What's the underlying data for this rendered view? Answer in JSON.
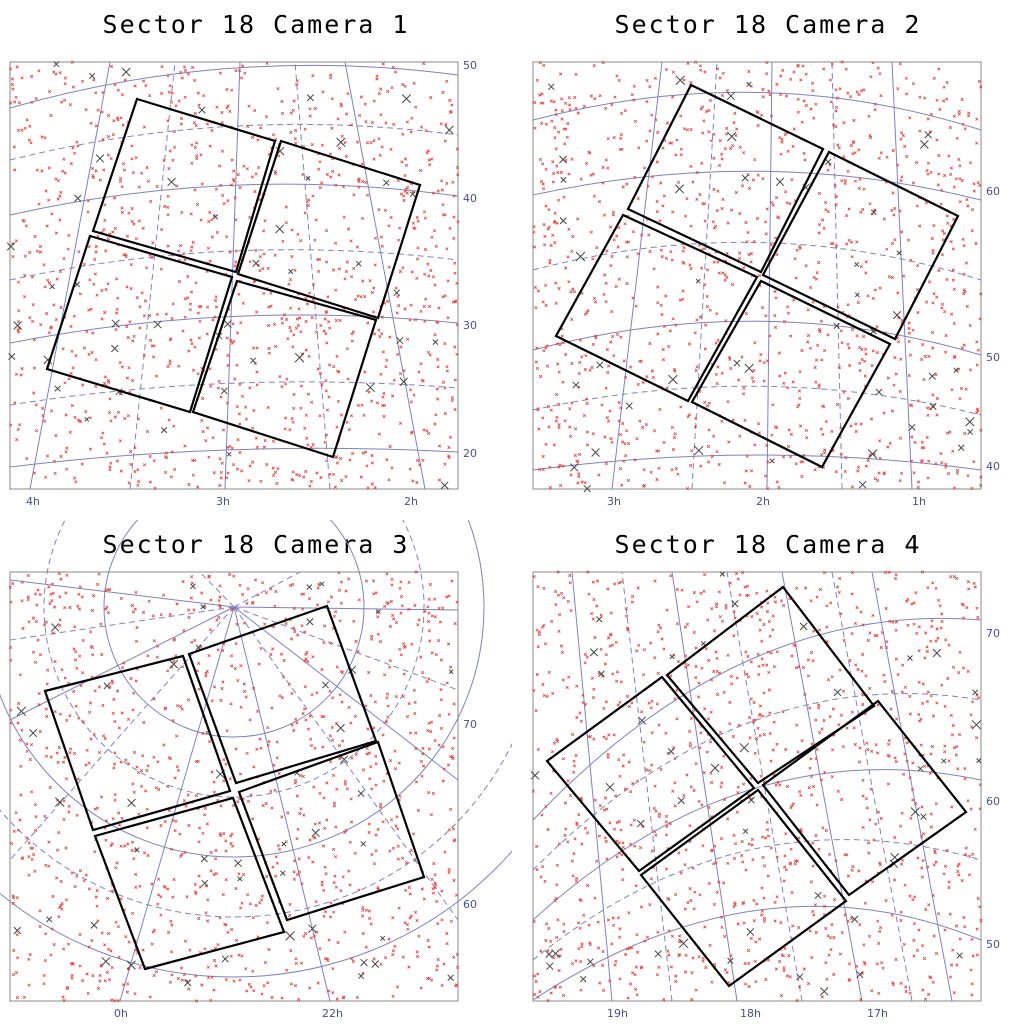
{
  "panels": [
    {
      "title": "Sector 18 Camera 1",
      "dec_labels": [
        "50",
        "40",
        "30",
        "20"
      ],
      "ra_labels": [
        "4h",
        "3h",
        "2h"
      ]
    },
    {
      "title": "Sector 18 Camera 2",
      "dec_labels": [
        "60",
        "50",
        "40"
      ],
      "ra_labels": [
        "3h",
        "2h",
        "1h"
      ]
    },
    {
      "title": "Sector 18 Camera 3",
      "dec_labels": [
        "70",
        "60"
      ],
      "ra_labels": [
        "0h",
        "22h"
      ]
    },
    {
      "title": "Sector 18 Camera 4",
      "dec_labels": [
        "70",
        "60",
        "50"
      ],
      "ra_labels": [
        "19h",
        "18h",
        "17h"
      ]
    }
  ],
  "colors": {
    "grid": "#7f82bf",
    "stars": "#e0403a",
    "bright_stars": "#444444",
    "frame": "#000000",
    "labels": "#4a4f8f"
  }
}
